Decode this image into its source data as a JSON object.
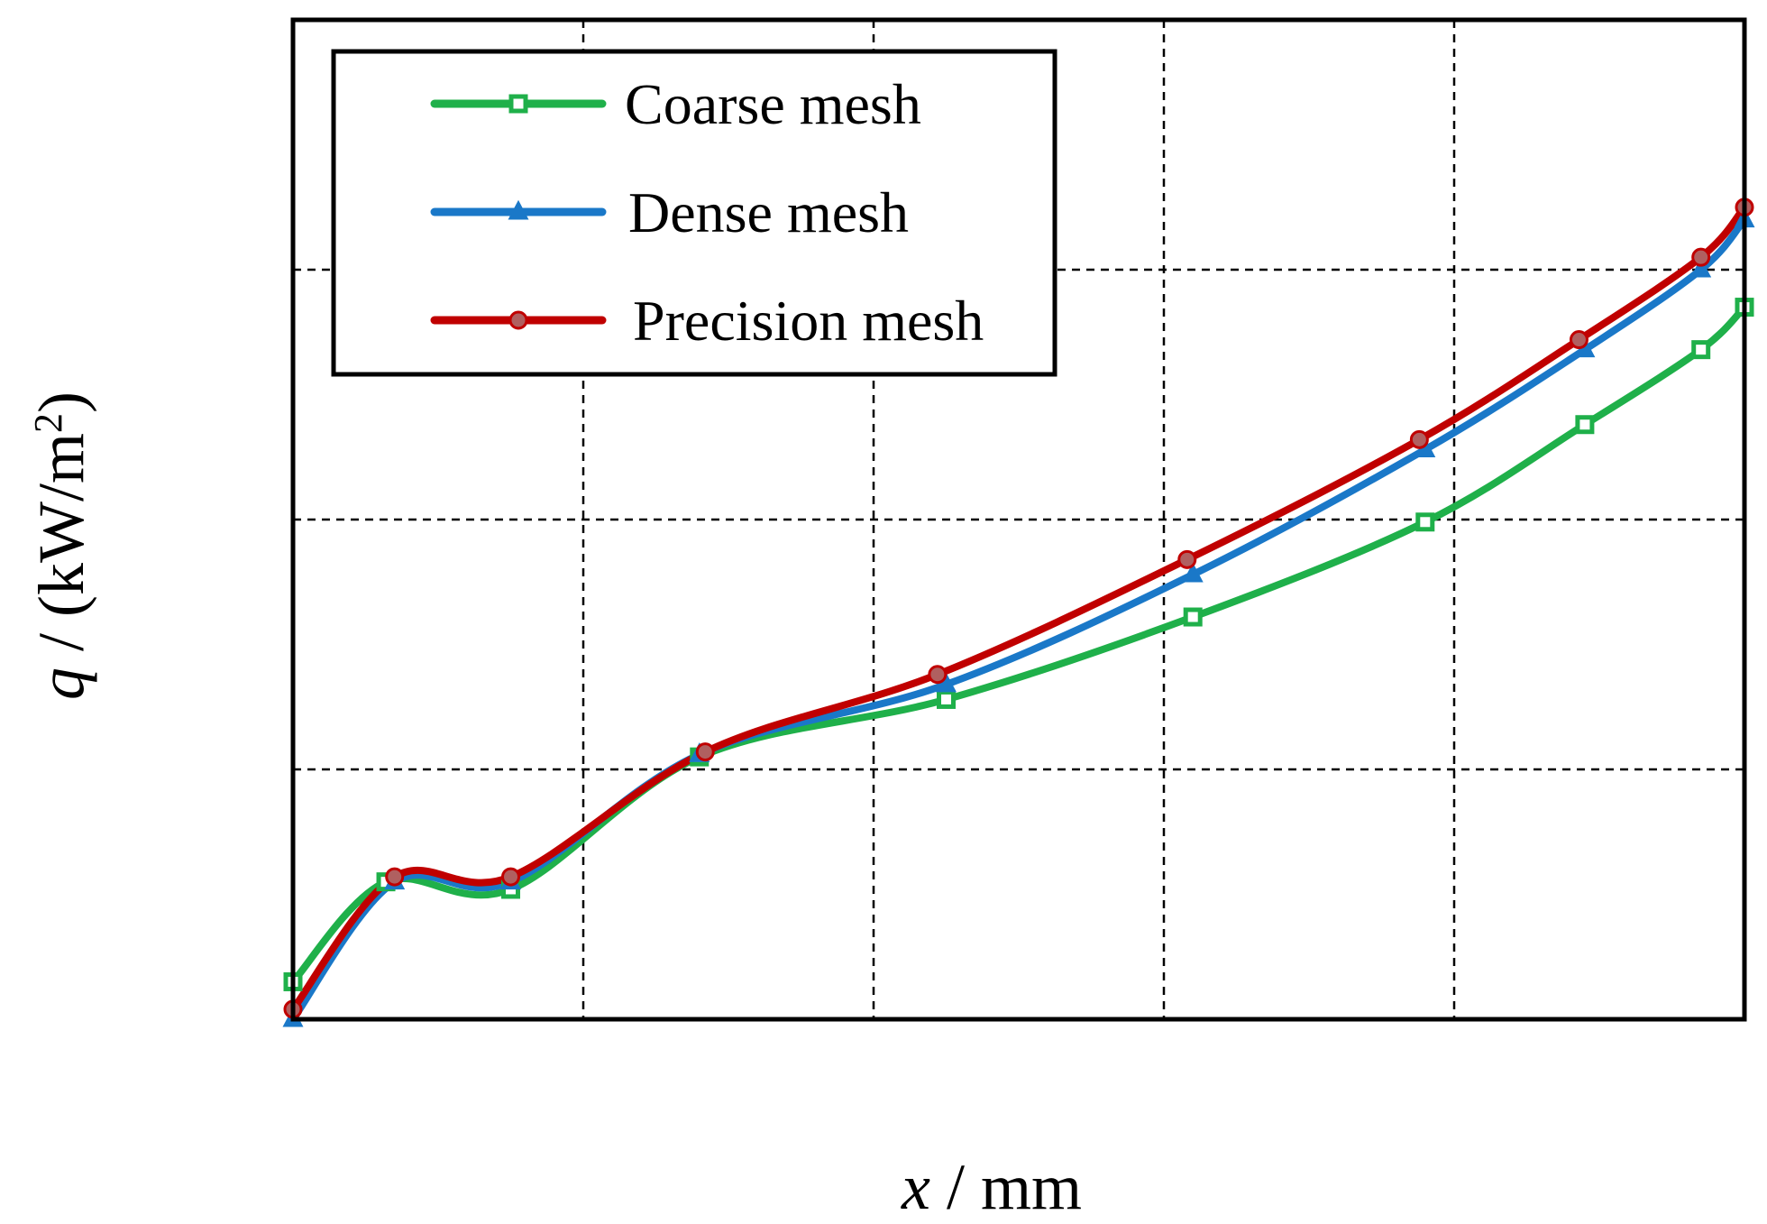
{
  "chart_data": {
    "type": "line",
    "title": "",
    "xlabel_var": "x",
    "xlabel_unit": " / mm",
    "ylabel_var": "q",
    "ylabel_unit": " / (kW/m",
    "ylabel_sup": "2",
    "ylabel_close": ")",
    "xlim": [
      0,
      5
    ],
    "ylim": [
      0,
      4
    ],
    "grid": true,
    "grid_style": "dashed",
    "legend_position": "top-left",
    "series": [
      {
        "name": "Coarse mesh",
        "color": "#1fb04a",
        "marker": "square",
        "x": [
          0.0,
          0.32,
          0.75,
          1.4,
          2.25,
          3.1,
          3.9,
          4.45,
          4.85,
          5.0
        ],
        "y": [
          0.15,
          0.55,
          0.52,
          1.05,
          1.28,
          1.61,
          1.99,
          2.38,
          2.68,
          2.85
        ]
      },
      {
        "name": "Dense mesh",
        "color": "#1a78c8",
        "marker": "triangle",
        "x": [
          0.0,
          0.35,
          0.75,
          1.4,
          2.25,
          3.1,
          3.9,
          4.45,
          4.85,
          5.0
        ],
        "y": [
          0.0,
          0.55,
          0.55,
          1.06,
          1.34,
          1.78,
          2.28,
          2.68,
          3.0,
          3.2
        ]
      },
      {
        "name": "Precision mesh",
        "color": "#c00000",
        "marker": "circle",
        "x": [
          0.0,
          0.35,
          0.75,
          1.42,
          2.22,
          3.08,
          3.88,
          4.43,
          4.85,
          5.0
        ],
        "y": [
          0.04,
          0.57,
          0.57,
          1.07,
          1.38,
          1.84,
          2.32,
          2.72,
          3.05,
          3.25
        ]
      }
    ]
  }
}
